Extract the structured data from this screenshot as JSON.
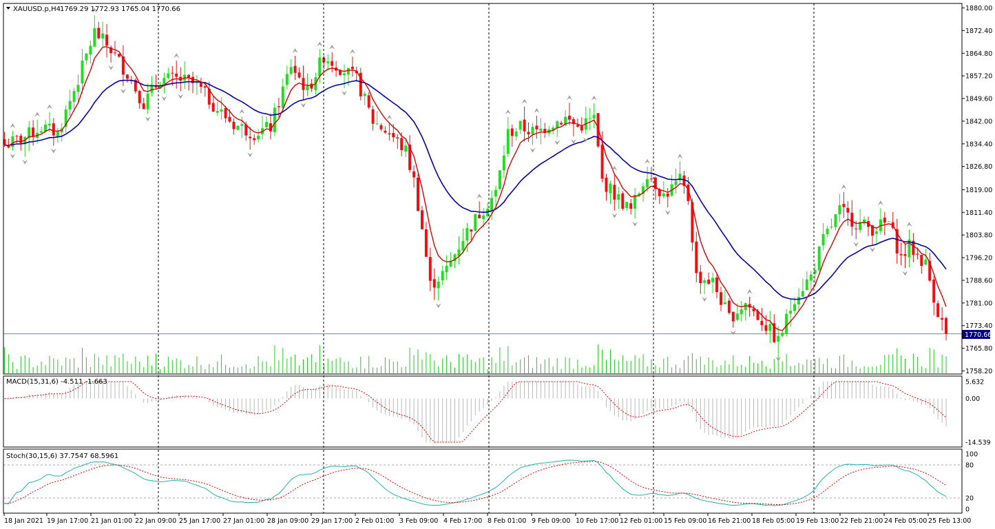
{
  "colors": {
    "background": "#ffffff",
    "bull_candle": "#22dd22",
    "bear_candle": "#ee1111",
    "ema_fast": "#dd0000",
    "ema_slow": "#0000aa",
    "volume": "#22cc22",
    "macd_hist": "#b8b8b8",
    "macd_signal": "#dd0000",
    "stoch_main": "#20b2aa",
    "stoch_signal": "#dd0000",
    "fractal": "#a0a0a0",
    "price_badge": "#000080"
  },
  "header": {
    "menu_icon": "triangle-down-icon",
    "symbol": "XAUUSD.p,H4",
    "ohlc": "1769.29 1772.93 1765.04 1770.66"
  },
  "price_badge": "1770.66",
  "chart_data": [
    {
      "type": "candlestick",
      "symbol": "XAUUSD.p",
      "timeframe": "H4",
      "ylim": [
        1758.2,
        1880.0
      ],
      "y_ticks": [
        "1880.00",
        "1872.40",
        "1864.80",
        "1857.20",
        "1849.60",
        "1842.00",
        "1834.40",
        "1826.80",
        "1819.00",
        "1811.40",
        "1803.80",
        "1796.20",
        "1788.60",
        "1781.00",
        "1773.40",
        "1765.80",
        "1758.20"
      ],
      "x_labels": [
        "18 Jan 2021",
        "19 Jan 17:00",
        "21 Jan 01:00",
        "22 Jan 09:00",
        "25 Jan 17:00",
        "27 Jan 01:00",
        "28 Jan 09:00",
        "29 Jan 17:00",
        "2 Feb 01:00",
        "3 Feb 09:00",
        "4 Feb 17:00",
        "8 Feb 01:00",
        "9 Feb 09:00",
        "10 Feb 17:00",
        "12 Feb 01:00",
        "15 Feb 09:00",
        "16 Feb 21:00",
        "18 Feb 05:00",
        "19 Feb 13:00",
        "22 Feb 21:00",
        "24 Feb 05:00",
        "25 Feb 13:00"
      ],
      "current_price": 1770.66,
      "close_waypoints": [
        [
          0,
          1834
        ],
        [
          4,
          1836
        ],
        [
          9,
          1840
        ],
        [
          13,
          1838
        ],
        [
          18,
          1856
        ],
        [
          22,
          1872
        ],
        [
          26,
          1866
        ],
        [
          30,
          1858
        ],
        [
          34,
          1848
        ],
        [
          38,
          1856
        ],
        [
          43,
          1856
        ],
        [
          47,
          1854
        ],
        [
          52,
          1846
        ],
        [
          56,
          1841
        ],
        [
          61,
          1838
        ],
        [
          65,
          1840
        ],
        [
          70,
          1861
        ],
        [
          74,
          1852
        ],
        [
          78,
          1864
        ],
        [
          82,
          1860
        ],
        [
          86,
          1856
        ],
        [
          90,
          1842
        ],
        [
          94,
          1838
        ],
        [
          98,
          1832
        ],
        [
          100,
          1822
        ],
        [
          102,
          1806
        ],
        [
          104,
          1787
        ],
        [
          108,
          1792
        ],
        [
          112,
          1803
        ],
        [
          116,
          1811
        ],
        [
          120,
          1818
        ],
        [
          123,
          1838
        ],
        [
          126,
          1840
        ],
        [
          130,
          1838
        ],
        [
          133,
          1841
        ],
        [
          137,
          1843
        ],
        [
          140,
          1840
        ],
        [
          144,
          1843
        ],
        [
          146,
          1822
        ],
        [
          150,
          1816
        ],
        [
          153,
          1812
        ],
        [
          157,
          1825
        ],
        [
          161,
          1817
        ],
        [
          165,
          1822
        ],
        [
          167,
          1816
        ],
        [
          169,
          1790
        ],
        [
          173,
          1788
        ],
        [
          177,
          1776
        ],
        [
          181,
          1781
        ],
        [
          185,
          1775
        ],
        [
          189,
          1768
        ],
        [
          193,
          1783
        ],
        [
          197,
          1790
        ],
        [
          200,
          1802
        ],
        [
          204,
          1812
        ],
        [
          208,
          1808
        ],
        [
          212,
          1806
        ],
        [
          216,
          1808
        ],
        [
          219,
          1796
        ],
        [
          221,
          1800
        ],
        [
          225,
          1794
        ],
        [
          228,
          1778
        ],
        [
          230,
          1771
        ]
      ],
      "ema_fast_period_label": "",
      "ema_slow_period_label": ""
    },
    {
      "type": "histogram",
      "title": "MACD(15,31,6) -4.511 -1.663",
      "ylim": [
        -14.539,
        5.632
      ],
      "y_ticks": [
        "5.632",
        "0.00",
        "-14.539"
      ]
    },
    {
      "type": "line",
      "title": "Stoch(30,15,6) 37.7547 68.5961",
      "ylim": [
        0,
        100
      ],
      "y_ticks": [
        "100",
        "80",
        "20",
        "0"
      ]
    }
  ]
}
